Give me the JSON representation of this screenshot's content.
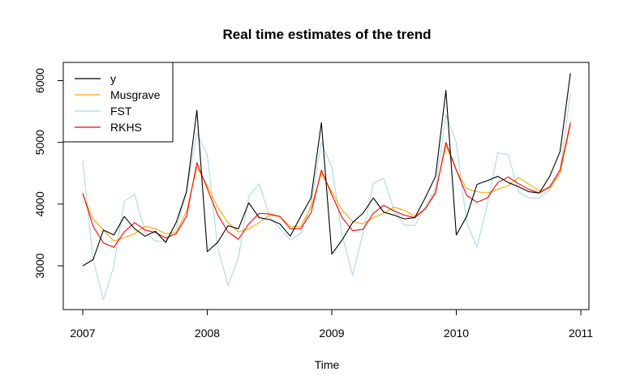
{
  "chart_data": {
    "type": "line",
    "title": "Real time estimates of the trend",
    "xlabel": "Time",
    "ylabel": "",
    "xlim": [
      2007,
      2011
    ],
    "ylim": [
      2300,
      6250
    ],
    "x_ticks": [
      2007,
      2008,
      2009,
      2010,
      2011
    ],
    "x_tick_labels": [
      "2007",
      "2008",
      "2009",
      "2010",
      "2011"
    ],
    "y_ticks": [
      3000,
      4000,
      5000,
      6000
    ],
    "y_tick_labels": [
      "3000",
      "4000",
      "5000",
      "6000"
    ],
    "grid": false,
    "legend_position": "top-left",
    "x_start": 2007,
    "x_frequency": 12,
    "series": [
      {
        "name": "y",
        "color": "#000000",
        "values": [
          3000,
          3100,
          3580,
          3500,
          3800,
          3600,
          3480,
          3560,
          3380,
          3700,
          4200,
          5520,
          3230,
          3380,
          3650,
          3600,
          4020,
          3780,
          3750,
          3680,
          3480,
          3800,
          4100,
          5320,
          3190,
          3420,
          3700,
          3850,
          4100,
          3870,
          3820,
          3760,
          3780,
          4100,
          4450,
          5840,
          3500,
          3800,
          4320,
          4380,
          4450,
          4350,
          4280,
          4200,
          4180,
          4450,
          4850,
          6120
        ]
      },
      {
        "name": "Musgrave",
        "color": "#FFA500",
        "values": [
          4150,
          3760,
          3580,
          3400,
          3460,
          3520,
          3640,
          3600,
          3520,
          3540,
          3880,
          4600,
          4300,
          3950,
          3700,
          3550,
          3600,
          3700,
          3820,
          3800,
          3640,
          3640,
          3950,
          4500,
          4200,
          3900,
          3720,
          3680,
          3780,
          3850,
          3950,
          3900,
          3800,
          3920,
          4200,
          4950,
          4550,
          4250,
          4200,
          4180,
          4240,
          4300,
          4430,
          4320,
          4220,
          4260,
          4500,
          5280
        ]
      },
      {
        "name": "FST",
        "color": "#ADD8E6",
        "values": [
          4700,
          3100,
          2450,
          3000,
          4050,
          4160,
          3550,
          3400,
          3400,
          3600,
          4200,
          5150,
          4800,
          3300,
          2680,
          3130,
          4130,
          4330,
          3800,
          3600,
          3420,
          3520,
          4000,
          5000,
          4600,
          3500,
          2850,
          3520,
          4330,
          4420,
          3900,
          3660,
          3650,
          3950,
          4250,
          5450,
          5000,
          3700,
          3300,
          4000,
          4830,
          4800,
          4200,
          4100,
          4100,
          4230,
          4550,
          5800
        ]
      },
      {
        "name": "RKHS",
        "color": "#FF0000",
        "values": [
          4180,
          3640,
          3370,
          3300,
          3550,
          3700,
          3580,
          3540,
          3450,
          3520,
          3800,
          4670,
          4250,
          3830,
          3550,
          3430,
          3680,
          3850,
          3840,
          3800,
          3600,
          3600,
          3860,
          4550,
          4150,
          3780,
          3570,
          3590,
          3850,
          3980,
          3890,
          3820,
          3780,
          3920,
          4180,
          5000,
          4550,
          4140,
          4030,
          4100,
          4350,
          4440,
          4330,
          4240,
          4180,
          4280,
          4550,
          5320
        ]
      }
    ]
  }
}
